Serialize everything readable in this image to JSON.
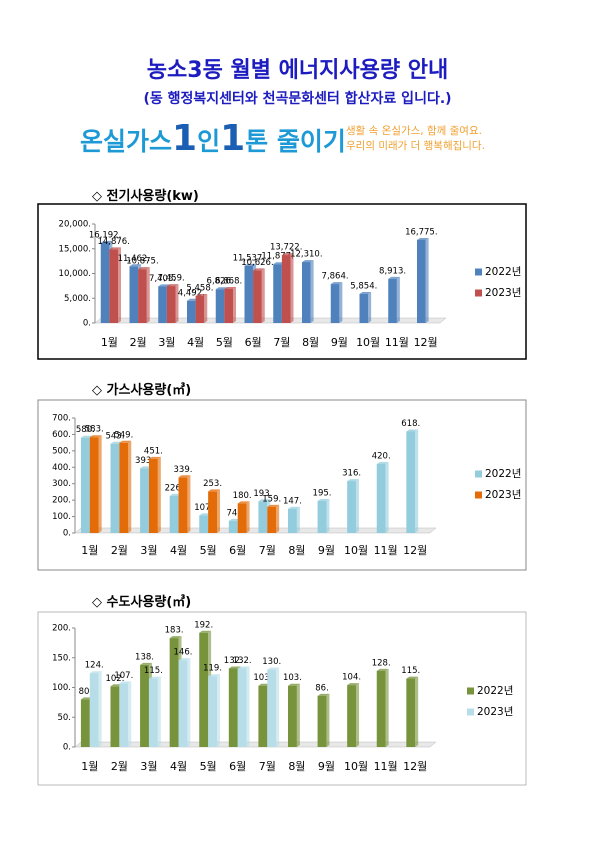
{
  "header": {
    "title": "농소3동 월별 에너지사용량 안내",
    "subtitle": "(동 행정복지센터와 천곡문화센터 합산자료 입니다.)"
  },
  "banner": {
    "slogan": [
      "온실가스",
      "1",
      "인",
      "1",
      "톤 줄이기"
    ],
    "tagline": [
      "생활 속 온실가스, 함께 줄여요.",
      "우리의 미래가 더 행복해집니다."
    ]
  },
  "chart_data": [
    {
      "type": "bar",
      "title": "◇ 전기사용량(kw)",
      "categories": [
        "1월",
        "2월",
        "3월",
        "4월",
        "5월",
        "6월",
        "7월",
        "8월",
        "9월",
        "10월",
        "11월",
        "12월"
      ],
      "series": [
        {
          "name": "2022년",
          "color": "#4f81bd",
          "values": [
            16192,
            11462,
            7405,
            4492,
            6826,
            11537,
            11877,
            12310,
            7864,
            5854,
            8913,
            16775
          ],
          "value_labels": [
            "16,192.",
            "11,462.",
            "7,405.",
            "4,492.",
            "6,826.",
            "11,537.",
            "11,877.",
            "12,310.",
            "7,864.",
            "5,854.",
            "8,913.",
            "16,775."
          ]
        },
        {
          "name": "2023년",
          "color": "#c0504d",
          "values": [
            14876,
            10875,
            7459,
            5458,
            6868,
            10626,
            13722,
            null,
            null,
            null,
            null,
            null
          ],
          "value_labels": [
            "14,876.",
            "10,875.",
            "7,459.",
            "5,458.",
            "6,868.",
            "10,626.",
            "13,722.",
            null,
            null,
            null,
            null,
            null
          ]
        }
      ],
      "ylim": [
        0,
        20000
      ],
      "yticks": [
        {
          "value": 0,
          "label": "0."
        },
        {
          "value": 5000,
          "label": "5,000."
        },
        {
          "value": 10000,
          "label": "10,000."
        },
        {
          "value": 15000,
          "label": "15,000."
        },
        {
          "value": 20000,
          "label": "20,000."
        }
      ]
    },
    {
      "type": "bar",
      "title": "◇ 가스사용량(㎥)",
      "categories": [
        "1월",
        "2월",
        "3월",
        "4월",
        "5월",
        "6월",
        "7월",
        "8월",
        "9월",
        "10월",
        "11월",
        "12월"
      ],
      "series": [
        {
          "name": "2022년",
          "color": "#93cddd",
          "values": [
            580,
            543,
            393,
            226,
            107,
            74,
            193,
            147,
            195,
            316,
            420,
            618
          ],
          "value_labels": [
            "580.",
            "543.",
            "393.",
            "226.",
            "107.",
            "74.",
            "193.",
            "147.",
            "195.",
            "316.",
            "420.",
            "618."
          ]
        },
        {
          "name": "2023년",
          "color": "#e36c09",
          "values": [
            583,
            549,
            451,
            339,
            253,
            180,
            159,
            null,
            null,
            null,
            null,
            null
          ],
          "value_labels": [
            "583.",
            "549.",
            "451.",
            "339.",
            "253.",
            "180.",
            "159.",
            null,
            null,
            null,
            null,
            null
          ]
        }
      ],
      "ylim": [
        0,
        700
      ],
      "yticks": [
        {
          "value": 0,
          "label": "0."
        },
        {
          "value": 100,
          "label": "100."
        },
        {
          "value": 200,
          "label": "200."
        },
        {
          "value": 300,
          "label": "300."
        },
        {
          "value": 400,
          "label": "400."
        },
        {
          "value": 500,
          "label": "500."
        },
        {
          "value": 600,
          "label": "600."
        },
        {
          "value": 700,
          "label": "700."
        }
      ]
    },
    {
      "type": "bar",
      "title": "◇ 수도사용량(㎥)",
      "categories": [
        "1월",
        "2월",
        "3월",
        "4월",
        "5월",
        "6월",
        "7월",
        "8월",
        "9월",
        "10월",
        "11월",
        "12월"
      ],
      "series": [
        {
          "name": "2022년",
          "color": "#77933c",
          "values": [
            80,
            102,
            138,
            183,
            192,
            132,
            103,
            103,
            86,
            104,
            128,
            115
          ],
          "value_labels": [
            "80.",
            "102.",
            "138.",
            "183.",
            "192.",
            "132.",
            "103.",
            "103.",
            "86.",
            "104.",
            "128.",
            "115."
          ]
        },
        {
          "name": "2023년",
          "color": "#b7dee8",
          "values": [
            124,
            107,
            115,
            146,
            119,
            132,
            130,
            null,
            null,
            null,
            null,
            null
          ],
          "value_labels": [
            "124.",
            "107.",
            "115.",
            "146.",
            "119.",
            "132.",
            "130.",
            null,
            null,
            null,
            null,
            null
          ]
        }
      ],
      "ylim": [
        0,
        200
      ],
      "yticks": [
        {
          "value": 0,
          "label": "0."
        },
        {
          "value": 50,
          "label": "50."
        },
        {
          "value": 100,
          "label": "100."
        },
        {
          "value": 150,
          "label": "150."
        },
        {
          "value": 200,
          "label": "200."
        }
      ]
    }
  ]
}
